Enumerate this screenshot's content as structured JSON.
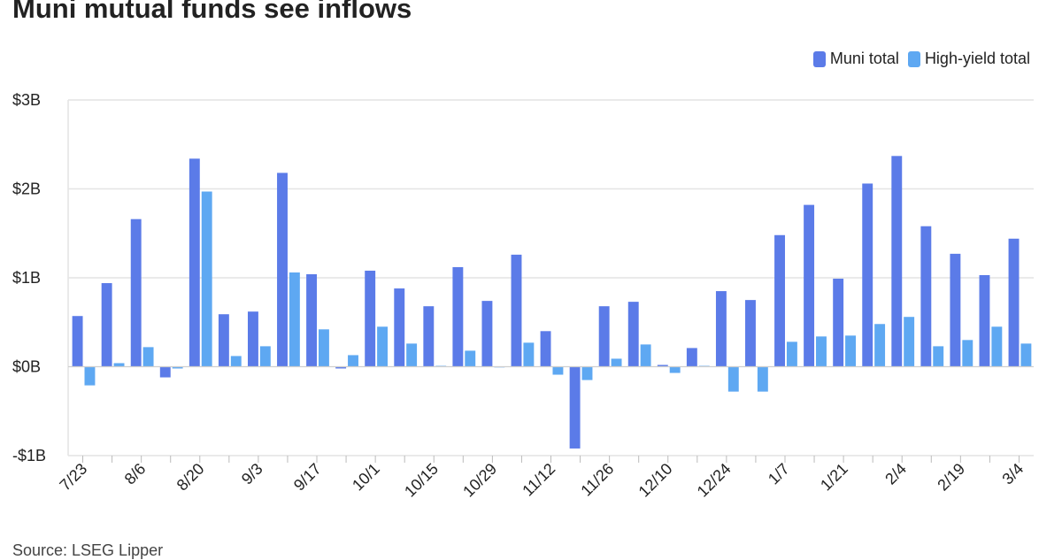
{
  "title": "Muni mutual funds see inflows",
  "source": "Source: LSEG Lipper",
  "chart_data": {
    "type": "bar",
    "categories": [
      "7/23",
      "7/30",
      "8/6",
      "8/13",
      "8/20",
      "8/27",
      "9/3",
      "9/10",
      "9/17",
      "9/24",
      "10/1",
      "10/8",
      "10/15",
      "10/22",
      "10/29",
      "11/5",
      "11/12",
      "11/19",
      "11/26",
      "12/3",
      "12/10",
      "12/17",
      "12/24",
      "12/31",
      "1/7",
      "1/14",
      "1/21",
      "1/28",
      "2/4",
      "2/11",
      "2/19",
      "2/25",
      "3/4"
    ],
    "x_tick_labels": [
      "7/23",
      "8/6",
      "8/20",
      "9/3",
      "9/17",
      "10/1",
      "10/15",
      "10/29",
      "11/12",
      "11/26",
      "12/10",
      "12/24",
      "1/7",
      "1/21",
      "2/4",
      "2/19",
      "3/4"
    ],
    "series": [
      {
        "name": "Muni total",
        "color": "#5b7be8",
        "values": [
          0.57,
          0.94,
          1.66,
          -0.12,
          2.34,
          0.59,
          0.62,
          2.18,
          1.04,
          -0.02,
          1.08,
          0.88,
          0.68,
          1.12,
          0.74,
          1.26,
          0.4,
          -0.92,
          0.68,
          0.73,
          0.02,
          0.21,
          0.85,
          0.75,
          1.48,
          1.82,
          0.99,
          2.06,
          2.37,
          1.58,
          1.27,
          1.03,
          1.44
        ]
      },
      {
        "name": "High-yield total",
        "color": "#5ea8f2",
        "values": [
          -0.21,
          0.04,
          0.22,
          -0.02,
          1.97,
          0.12,
          0.23,
          1.06,
          0.42,
          0.13,
          0.45,
          0.26,
          0.01,
          0.18,
          0.0,
          0.27,
          -0.09,
          -0.15,
          0.09,
          0.25,
          -0.07,
          0.01,
          -0.28,
          -0.28,
          0.28,
          0.34,
          0.35,
          0.48,
          0.56,
          0.23,
          0.3,
          0.45,
          0.26
        ]
      }
    ],
    "y_ticks": [
      {
        "value": 3,
        "label": "$3B"
      },
      {
        "value": 2,
        "label": "$2B"
      },
      {
        "value": 1,
        "label": "$1B"
      },
      {
        "value": 0,
        "label": "$0B"
      },
      {
        "value": -1,
        "label": "-$1B"
      }
    ],
    "ylim": [
      -1,
      3
    ],
    "grid": true,
    "legend_position": "top-right"
  }
}
